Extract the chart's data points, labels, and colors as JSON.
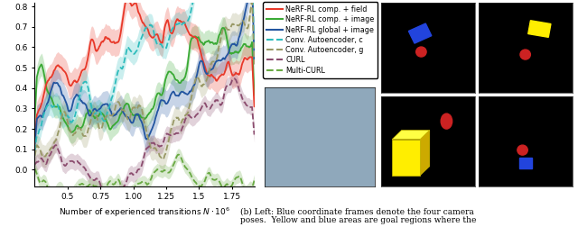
{
  "xlabel": "Number of experienced transitions $N \\cdot 10^6$",
  "xticks": [
    0.5,
    0.75,
    1.0,
    1.25,
    1.5,
    1.75
  ],
  "xlim": [
    0.25,
    1.92
  ],
  "ylim_plot": [
    -0.08,
    0.82
  ],
  "lines": {
    "nerf_comp_field": {
      "color": "#e8392a",
      "label": "NeRF-RL comp. + field",
      "style": "solid",
      "lw": 1.3
    },
    "nerf_comp_image": {
      "color": "#3aaa35",
      "label": "NeRF-RL comp. + image",
      "style": "solid",
      "lw": 1.3
    },
    "nerf_global_image": {
      "color": "#2355a0",
      "label": "NeRF-RL global + image",
      "style": "solid",
      "lw": 1.3
    },
    "conv_ae_c": {
      "color": "#2ebcbc",
      "label": "Conv. Autoencoder, c",
      "style": "dashed",
      "lw": 1.3
    },
    "conv_ae_g": {
      "color": "#999966",
      "label": "Conv. Autoencoder, g",
      "style": "dashed",
      "lw": 1.3
    },
    "curl": {
      "color": "#8b4c6e",
      "label": "CURL",
      "style": "dashed",
      "lw": 1.3
    },
    "multi_curl": {
      "color": "#6aaa44",
      "label": "Multi-CURL",
      "style": "dashed",
      "lw": 1.3
    }
  },
  "caption_text": "(b) Left: Blue coordinate frames denote the four camera\nposes.  Yellow and blue areas are goal regions where the",
  "fig_width": 6.4,
  "fig_height": 2.52
}
